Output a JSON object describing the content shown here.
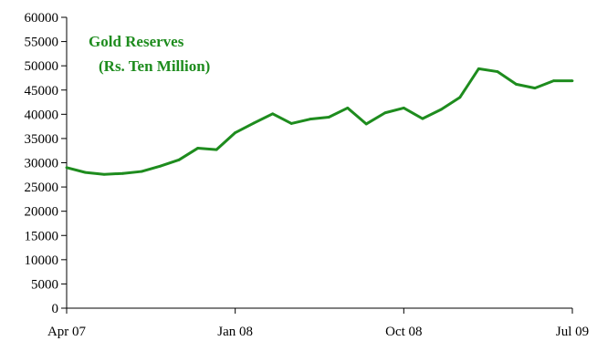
{
  "chart_data": {
    "type": "line",
    "x_labels": [
      "Apr 07",
      "Jan 08",
      "Oct 08",
      "Jul 09"
    ],
    "x_label_index": [
      0,
      9,
      18,
      27
    ],
    "y_ticks": [
      0,
      5000,
      10000,
      15000,
      20000,
      25000,
      30000,
      35000,
      40000,
      45000,
      50000,
      55000,
      60000
    ],
    "ylim": [
      0,
      60000
    ],
    "series": [
      {
        "name": "Gold Reserves",
        "color": "#1e8c1e",
        "values": [
          29000,
          28000,
          27600,
          27800,
          28200,
          29300,
          30600,
          33000,
          32700,
          36200,
          38200,
          40100,
          38100,
          39000,
          39400,
          41300,
          38000,
          40300,
          41300,
          39100,
          41000,
          43500,
          49400,
          48800,
          46200,
          45400,
          46900,
          46900
        ]
      }
    ],
    "legend_lines": [
      "Gold Reserves",
      "(Rs. Ten Million)"
    ],
    "legend_color": "#1e8c1e",
    "grid": false,
    "legend_placement": "top-left"
  }
}
